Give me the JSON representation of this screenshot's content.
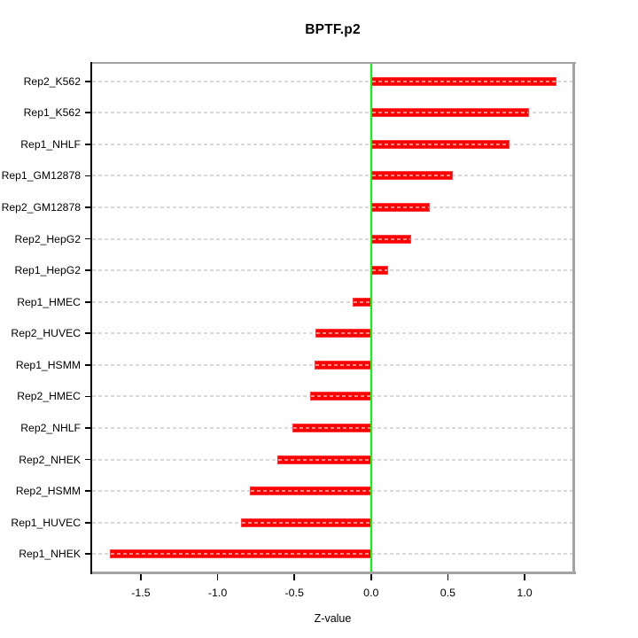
{
  "page": {
    "title": "BPTF.p2"
  },
  "chart_data": {
    "type": "bar",
    "orientation": "horizontal",
    "title": "BPTF.p2",
    "xlabel": "Z-value",
    "categories": [
      "Rep2_K562",
      "Rep1_K562",
      "Rep1_NHLF",
      "Rep1_GM12878",
      "Rep2_GM12878",
      "Rep2_HepG2",
      "Rep1_HepG2",
      "Rep1_HMEC",
      "Rep2_HUVEC",
      "Rep1_HSMM",
      "Rep2_HMEC",
      "Rep2_NHLF",
      "Rep2_NHEK",
      "Rep2_HSMM",
      "Rep1_HUVEC",
      "Rep1_NHEK"
    ],
    "values": [
      1.21,
      1.03,
      0.9,
      0.53,
      0.38,
      0.26,
      0.11,
      -0.12,
      -0.36,
      -0.37,
      -0.4,
      -0.51,
      -0.61,
      -0.79,
      -0.85,
      -1.7
    ],
    "xlim": [
      -1.82,
      1.32
    ],
    "x_tick_values": [
      -1.5,
      -1.0,
      -0.5,
      0.0,
      0.5,
      1.0
    ],
    "x_tick_labels": [
      "-1.5",
      "-1.0",
      "-0.5",
      "0.0",
      "0.5",
      "1.0"
    ],
    "grid": "horizontal-dashed",
    "legend": "none",
    "colors": {
      "bar": "#ff0000",
      "zero_line": "#00ff00",
      "grid_line": "#d9d9d9",
      "frame": "#a3a3a3",
      "axis": "#000000",
      "background": "#ffffff",
      "text": "#000000"
    }
  }
}
